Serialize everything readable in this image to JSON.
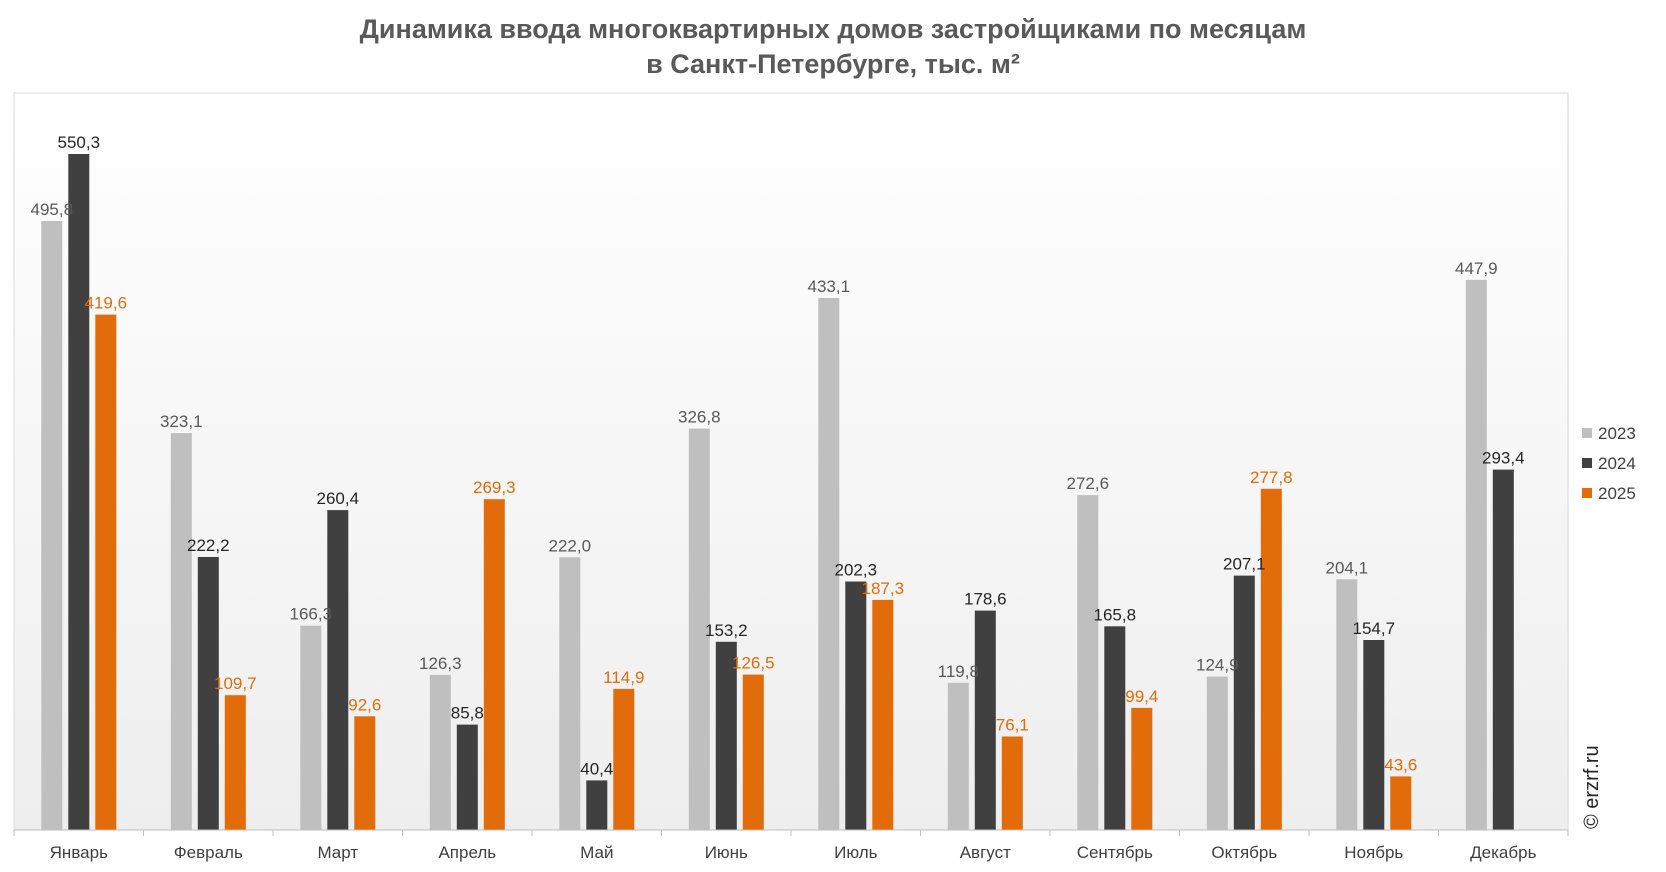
{
  "chart_data": {
    "type": "bar",
    "title": "Динамика ввода многоквартирных домов застройщиками по месяцам",
    "subtitle": "в Санкт-Петербурге, тыс. м²",
    "categories": [
      "Январь",
      "Февраль",
      "Март",
      "Апрель",
      "Май",
      "Июнь",
      "Июль",
      "Август",
      "Сентябрь",
      "Октябрь",
      "Ноябрь",
      "Декабрь"
    ],
    "series": [
      {
        "name": "2023",
        "color": "#bfbfbf",
        "label_color": "#595959",
        "values": [
          495.8,
          323.1,
          166.3,
          126.3,
          222.0,
          326.8,
          433.1,
          119.8,
          272.6,
          124.9,
          204.1,
          447.9
        ],
        "labels": [
          "495,8",
          "323,1",
          "166,3",
          "126,3",
          "222,0",
          "326,8",
          "433,1",
          "119,8",
          "272,6",
          "124,9",
          "204,1",
          "447,9"
        ]
      },
      {
        "name": "2024",
        "color": "#404040",
        "label_color": "#262626",
        "values": [
          550.3,
          222.2,
          260.4,
          85.8,
          40.4,
          153.2,
          202.3,
          178.6,
          165.8,
          207.1,
          154.7,
          293.4
        ],
        "labels": [
          "550,3",
          "222,2",
          "260,4",
          "85,8",
          "40,4",
          "153,2",
          "202,3",
          "178,6",
          "165,8",
          "207,1",
          "154,7",
          "293,4"
        ]
      },
      {
        "name": "2025",
        "color": "#e36c0a",
        "label_color": "#e36c0a",
        "values": [
          419.6,
          109.7,
          92.6,
          269.3,
          114.9,
          126.5,
          187.3,
          76.1,
          99.4,
          277.8,
          43.6,
          null
        ],
        "labels": [
          "419,6",
          "109,7",
          "92,6",
          "269,3",
          "114,9",
          "126,5",
          "187,3",
          "76,1",
          "99,4",
          "277,8",
          "43,6",
          ""
        ]
      }
    ],
    "ylim": [
      0,
      610
    ],
    "grid": false,
    "legend_position": "right"
  },
  "watermark": "© erzrf.ru"
}
